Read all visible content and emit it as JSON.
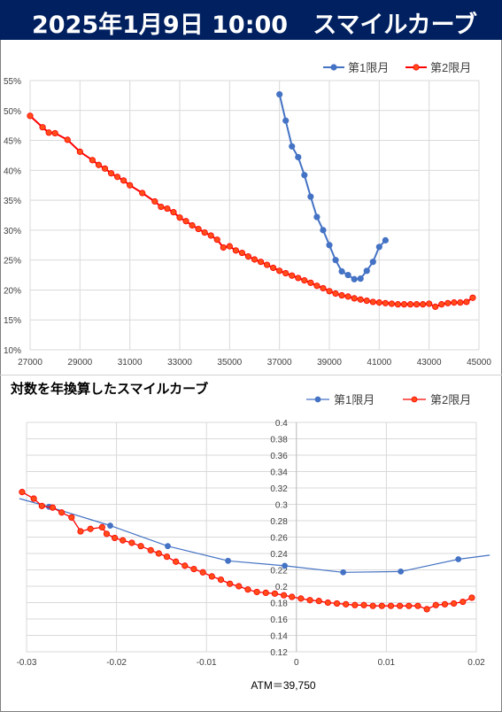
{
  "header": {
    "date": "2025年1月9日 10:00",
    "title": "スマイルカーブ"
  },
  "colors": {
    "header_bg": "#002060",
    "series1": "#4472c4",
    "series2": "#ff0000",
    "series2_fill": "#ff4d1a"
  },
  "chart_data": [
    {
      "type": "line",
      "title": "",
      "xlabel": "",
      "ylabel": "",
      "xlim": [
        27000,
        45000
      ],
      "ylim": [
        0.1,
        0.55
      ],
      "x_ticks": [
        "27000",
        "29000",
        "31000",
        "33000",
        "35000",
        "37000",
        "39000",
        "41000",
        "43000",
        "45000"
      ],
      "y_ticks": [
        "10%",
        "15%",
        "20%",
        "25%",
        "30%",
        "35%",
        "40%",
        "45%",
        "50%",
        "55%"
      ],
      "grid": true,
      "legend": "top-right",
      "series": [
        {
          "name": "第1限月",
          "x": [
            37000,
            37250,
            37500,
            37750,
            38000,
            38250,
            38500,
            38750,
            39000,
            39250,
            39500,
            39750,
            40000,
            40250,
            40500,
            40750,
            41000,
            41250
          ],
          "y": [
            0.527,
            0.483,
            0.44,
            0.422,
            0.392,
            0.356,
            0.322,
            0.3,
            0.275,
            0.25,
            0.231,
            0.225,
            0.218,
            0.219,
            0.232,
            0.247,
            0.272,
            0.283
          ]
        },
        {
          "name": "第2限月",
          "x": [
            27000,
            27500,
            27750,
            28000,
            28500,
            29000,
            29500,
            29750,
            30000,
            30250,
            30500,
            30750,
            31000,
            31500,
            32000,
            32250,
            32500,
            32750,
            33000,
            33250,
            33500,
            33750,
            34000,
            34250,
            34500,
            34750,
            35000,
            35250,
            35500,
            35750,
            36000,
            36250,
            36500,
            36750,
            37000,
            37250,
            37500,
            37750,
            38000,
            38250,
            38500,
            38750,
            39000,
            39250,
            39500,
            39750,
            40000,
            40250,
            40500,
            40750,
            41000,
            41250,
            41500,
            41750,
            42000,
            42250,
            42500,
            42750,
            43000,
            43250,
            43500,
            43750,
            44000,
            44250,
            44500,
            44750
          ],
          "y": [
            0.491,
            0.472,
            0.463,
            0.462,
            0.451,
            0.431,
            0.417,
            0.409,
            0.403,
            0.395,
            0.389,
            0.383,
            0.375,
            0.362,
            0.348,
            0.339,
            0.336,
            0.33,
            0.321,
            0.315,
            0.308,
            0.302,
            0.296,
            0.291,
            0.284,
            0.271,
            0.273,
            0.266,
            0.262,
            0.256,
            0.251,
            0.247,
            0.242,
            0.237,
            0.232,
            0.228,
            0.224,
            0.22,
            0.216,
            0.212,
            0.207,
            0.203,
            0.198,
            0.194,
            0.191,
            0.189,
            0.186,
            0.184,
            0.182,
            0.18,
            0.179,
            0.178,
            0.177,
            0.176,
            0.176,
            0.176,
            0.176,
            0.176,
            0.177,
            0.172,
            0.176,
            0.178,
            0.179,
            0.179,
            0.18,
            0.187
          ]
        }
      ]
    },
    {
      "type": "line",
      "title": "対数を年換算したスマイルカーブ",
      "xlabel": "ATM＝39,750",
      "ylabel": "",
      "xlim": [
        -0.03,
        0.02
      ],
      "ylim": [
        0.12,
        0.4
      ],
      "x_ticks": [
        "-0.03",
        "-0.02",
        "-0.01",
        "0",
        "0.01",
        "0.02"
      ],
      "y_ticks": [
        "0.12",
        "0.14",
        "0.16",
        "0.18",
        "0.2",
        "0.22",
        "0.24",
        "0.26",
        "0.28",
        "0.3",
        "0.32",
        "0.34",
        "0.36",
        "0.38",
        "0.4"
      ],
      "grid": true,
      "legend": "top-right",
      "series": [
        {
          "name": "第1限月",
          "x": [
            -0.0308,
            -0.0275,
            -0.0207,
            -0.0143,
            -0.0076,
            -0.0013,
            0.0052,
            0.0116,
            0.018,
            0.0215
          ],
          "y": [
            0.307,
            0.297,
            0.274,
            0.249,
            0.231,
            0.225,
            0.217,
            0.218,
            0.233,
            0.238
          ]
        },
        {
          "name": "第2限月",
          "x": [
            -0.0305,
            -0.0292,
            -0.0283,
            -0.0271,
            -0.0261,
            -0.025,
            -0.024,
            -0.0229,
            -0.0216,
            -0.0211,
            -0.0202,
            -0.0193,
            -0.0183,
            -0.0173,
            -0.0162,
            -0.0153,
            -0.0144,
            -0.0134,
            -0.0124,
            -0.0114,
            -0.0104,
            -0.0094,
            -0.0084,
            -0.0074,
            -0.0064,
            -0.0054,
            -0.0044,
            -0.0034,
            -0.0024,
            -0.0014,
            -0.0005,
            0.0005,
            0.0015,
            0.0025,
            0.0035,
            0.0045,
            0.0055,
            0.0065,
            0.0075,
            0.0085,
            0.0095,
            0.0105,
            0.0115,
            0.0125,
            0.0135,
            0.0145,
            0.0155,
            0.0165,
            0.0175,
            0.0185,
            0.0195
          ],
          "y": [
            0.315,
            0.307,
            0.298,
            0.296,
            0.29,
            0.284,
            0.267,
            0.27,
            0.272,
            0.264,
            0.259,
            0.256,
            0.253,
            0.249,
            0.244,
            0.24,
            0.236,
            0.23,
            0.225,
            0.221,
            0.217,
            0.212,
            0.208,
            0.203,
            0.2,
            0.196,
            0.193,
            0.192,
            0.191,
            0.189,
            0.187,
            0.185,
            0.183,
            0.182,
            0.18,
            0.179,
            0.178,
            0.177,
            0.177,
            0.176,
            0.176,
            0.176,
            0.176,
            0.176,
            0.176,
            0.172,
            0.177,
            0.178,
            0.179,
            0.181,
            0.186
          ]
        }
      ]
    }
  ]
}
